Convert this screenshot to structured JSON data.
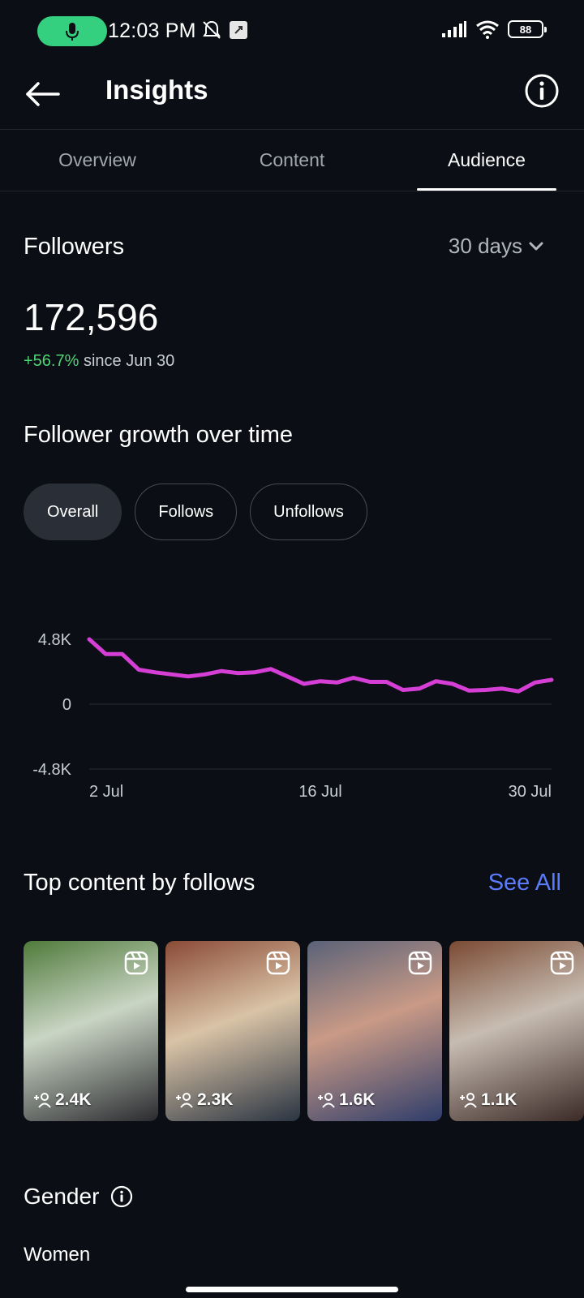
{
  "status_bar": {
    "time": "12:03 PM",
    "battery": "88"
  },
  "header": {
    "title": "Insights",
    "back_icon": "arrow-left-icon",
    "info_icon": "info-icon"
  },
  "tabs": [
    {
      "label": "Overview",
      "active": false
    },
    {
      "label": "Content",
      "active": false
    },
    {
      "label": "Audience",
      "active": true
    }
  ],
  "followers": {
    "title": "Followers",
    "range": "30 days",
    "count": "172,596",
    "delta": "+56.7%",
    "delta_suffix": "since Jun 30"
  },
  "growth": {
    "title": "Follower growth over time",
    "chips": [
      {
        "label": "Overall",
        "selected": true
      },
      {
        "label": "Follows",
        "selected": false
      },
      {
        "label": "Unfollows",
        "selected": false
      }
    ]
  },
  "chart_data": {
    "type": "line",
    "title": "",
    "xlabel": "",
    "ylabel": "",
    "y_ticks": [
      "4.8K",
      "0",
      "-4.8K"
    ],
    "x_ticks": [
      "2 Jul",
      "16 Jul",
      "30 Jul"
    ],
    "ylim": [
      -4800,
      4800
    ],
    "grid": true,
    "series": [
      {
        "color": "#d63fd6",
        "x": [
          "2 Jul",
          "3 Jul",
          "4 Jul",
          "5 Jul",
          "6 Jul",
          "7 Jul",
          "8 Jul",
          "9 Jul",
          "10 Jul",
          "11 Jul",
          "12 Jul",
          "13 Jul",
          "14 Jul",
          "15 Jul",
          "16 Jul",
          "17 Jul",
          "18 Jul",
          "19 Jul",
          "20 Jul",
          "21 Jul",
          "22 Jul",
          "23 Jul",
          "24 Jul",
          "25 Jul",
          "26 Jul",
          "27 Jul",
          "28 Jul",
          "29 Jul",
          "30 Jul"
        ],
        "values": [
          4800,
          3700,
          3700,
          2550,
          2350,
          2200,
          2050,
          2200,
          2450,
          2300,
          2350,
          2600,
          2050,
          1500,
          1700,
          1600,
          1950,
          1650,
          1650,
          1050,
          1150,
          1700,
          1500,
          1000,
          1050,
          1150,
          950,
          1600,
          1800
        ]
      }
    ]
  },
  "top_content": {
    "title": "Top content by follows",
    "see_all": "See All",
    "items": [
      {
        "count": "2.4K",
        "colors": [
          "#4f7a3a",
          "#c9d5c4",
          "#2b2a2f"
        ]
      },
      {
        "count": "2.3K",
        "colors": [
          "#8a4a36",
          "#d9c3a6",
          "#2a3442"
        ]
      },
      {
        "count": "1.6K",
        "colors": [
          "#5a6278",
          "#c99a86",
          "#2f3d6a"
        ]
      },
      {
        "count": "1.1K",
        "colors": [
          "#7a4a32",
          "#c7bcb2",
          "#3b2a26"
        ]
      }
    ]
  },
  "gender": {
    "title": "Gender",
    "first_label": "Women"
  }
}
